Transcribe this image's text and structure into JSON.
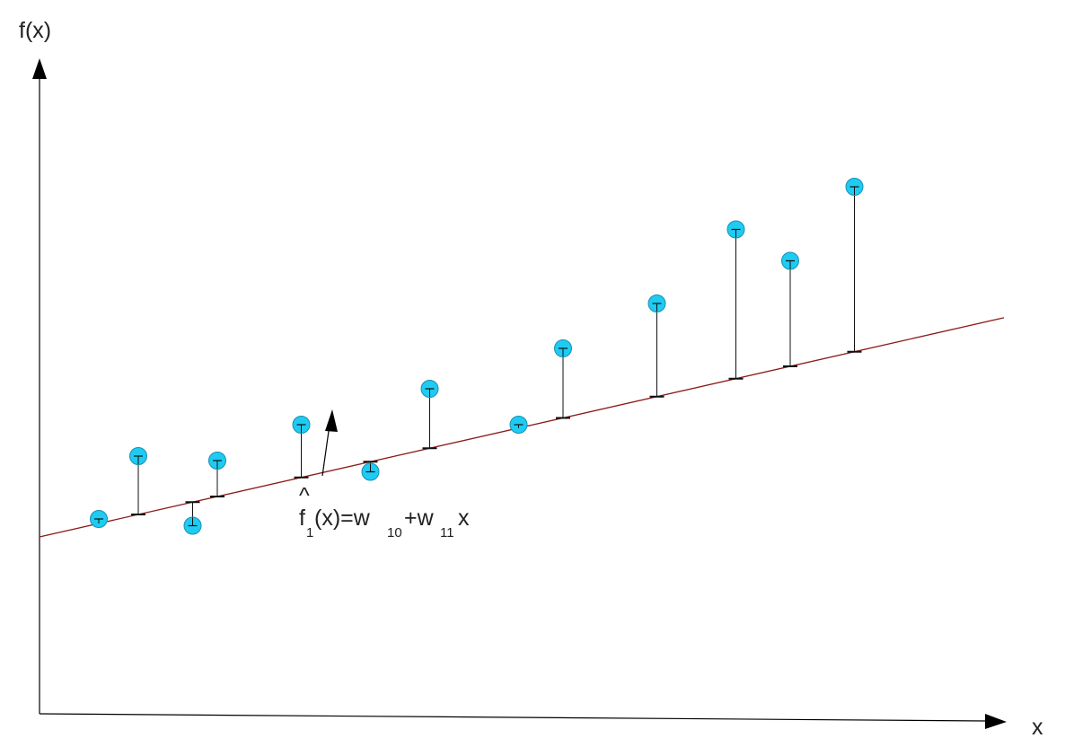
{
  "axes": {
    "y_label": "f(x)",
    "x_label": "x",
    "axis_color": "#000000"
  },
  "regression_line": {
    "color": "#8b1a1a",
    "intercept": 0,
    "slope": 0.5
  },
  "chart_data": {
    "type": "scatter",
    "x": [
      1.2,
      2.0,
      3.1,
      3.6,
      5.3,
      6.7,
      7.9,
      9.7,
      10.6,
      12.5,
      14.1,
      15.2,
      16.5
    ],
    "y": [
      0.8,
      3.6,
      0.5,
      3.4,
      5.0,
      2.9,
      6.6,
      5.0,
      8.4,
      10.4,
      13.7,
      12.3,
      15.6
    ],
    "fit": {
      "intercept": 0,
      "slope": 0.5
    },
    "grid": false,
    "legend": "none"
  },
  "points_style": {
    "fill": "#1ecbf2",
    "stroke": "#1a8fb0",
    "residual_color": "#111111"
  },
  "equation": {
    "hat": "^",
    "f": "f",
    "sub1": "1",
    "mid": "(x)=w",
    "sub10": "10",
    "plus": "+w",
    "sub11": "11",
    "end": "x"
  }
}
